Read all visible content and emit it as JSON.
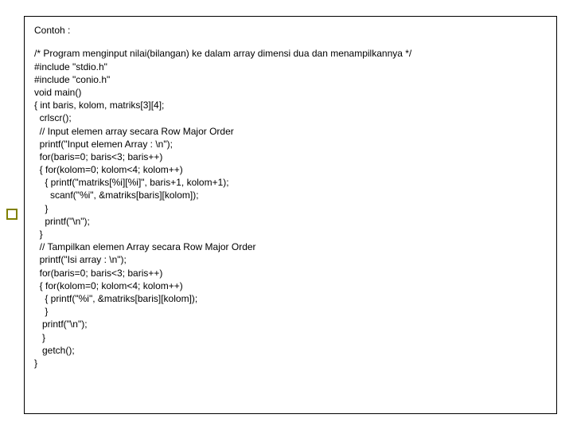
{
  "card": {
    "title": "Contoh :",
    "code_lines": [
      "/* Program menginput nilai(bilangan) ke dalam array dimensi dua dan menampilkannya */",
      "#include \"stdio.h\"",
      "#include \"conio.h\"",
      "void main()",
      "{ int baris, kolom, matriks[3][4];",
      "  crlscr();",
      "  // Input elemen array secara Row Major Order",
      "  printf(\"Input elemen Array : \\n\");",
      "  for(baris=0; baris<3; baris++)",
      "  { for(kolom=0; kolom<4; kolom++)",
      "    { printf(\"matriks[%i][%i]\", baris+1, kolom+1);",
      "      scanf(\"%i\", &matriks[baris][kolom]);",
      "    }",
      "    printf(\"\\n\");",
      "  }",
      "  // Tampilkan elemen Array secara Row Major Order",
      "  printf(\"Isi array : \\n\");",
      "  for(baris=0; baris<3; baris++)",
      "  { for(kolom=0; kolom<4; kolom++)",
      "    { printf(\"%i\", &matriks[baris][kolom]);",
      "    }",
      "   printf(\"\\n\");",
      "   }",
      "   getch();",
      "}"
    ]
  },
  "colors": {
    "border": "#000000",
    "text": "#000000",
    "bullet_border": "#808000",
    "background": "#ffffff"
  },
  "typography": {
    "font_family": "Arial",
    "title_fontsize": 12,
    "code_fontsize": 12,
    "line_height": 1.35
  }
}
